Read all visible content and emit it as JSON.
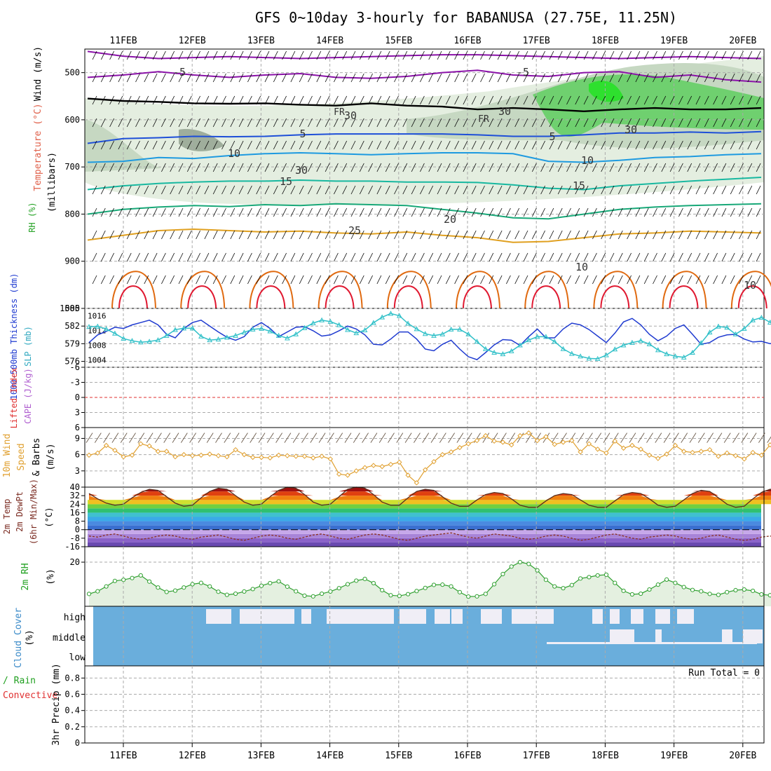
{
  "title": "GFS 0~10day 3-hourly for BABANUSA (27.75E, 11.25N)",
  "dates": [
    "11FEB",
    "12FEB",
    "13FEB",
    "14FEB",
    "15FEB",
    "16FEB",
    "17FEB",
    "18FEB",
    "19FEB",
    "20FEB"
  ],
  "colors": {
    "wind_barb": "#000000",
    "rh_light": "#e4eee0",
    "rh_mid": "#c6d8c2",
    "rh_dark": "#9fae9c",
    "rh_green": "#6fd06f",
    "rh_bright": "#2ee02e",
    "freezing": "#000000",
    "temp_minus5": "#8a12a8",
    "temp_5": "#1e4fd8",
    "temp_10": "#1e9ae0",
    "temp_15": "#18b8a0",
    "temp_20": "#18a878",
    "temp_25": "#e0a020",
    "temp_30": "#e06a10",
    "temp_35": "#e01830",
    "thickness": "#1e3ad0",
    "slp": "#30c0c8",
    "lifted_index_zero": "#e03030",
    "cape": "#b060d0",
    "wind10m": "#e0a030",
    "temp2m_fill": "#8a1010",
    "dewpoint": "#8a3020",
    "rh2m": "#30a030",
    "rh2m_fill": "#e4f0e0",
    "cloud_blue": "#6aaedc",
    "cloud_white": "#f0eef6",
    "precip_total": "#20a020",
    "precip_conv": "#e03030"
  },
  "chart_data": [
    {
      "type": "line",
      "panel": "upper-air",
      "ylabel_left": [
        "Wind (m/s)",
        "Temperature (°C)",
        "RH (%)"
      ],
      "ylabel": "(millibars)",
      "yticks": [
        500,
        600,
        700,
        800,
        900,
        1000
      ],
      "ylim": [
        450,
        1000
      ],
      "y_reversed": true,
      "grid": true,
      "contour_labels": [
        "-5",
        "-5",
        "FR",
        "FR",
        "5",
        "5",
        "10",
        "10",
        "15",
        "15",
        "20",
        "25",
        "10",
        "30",
        "30",
        "30",
        "30",
        "10"
      ],
      "series": [
        {
          "name": "-5",
          "level_mb": [
            455,
            465,
            470,
            468,
            466,
            468,
            470,
            468,
            466,
            464,
            462,
            462,
            464,
            466,
            468,
            470,
            468,
            466,
            468,
            470
          ]
        },
        {
          "name": "-5",
          "level_mb": [
            510,
            505,
            498,
            505,
            510,
            505,
            502,
            510,
            512,
            508,
            500,
            495,
            505,
            508,
            500,
            498,
            510,
            505,
            515,
            520
          ]
        },
        {
          "name": "FR",
          "level_mb": [
            555,
            560,
            562,
            565,
            566,
            565,
            568,
            570,
            565,
            570,
            572,
            578,
            575,
            578,
            582,
            578,
            575,
            578,
            578,
            575
          ]
        },
        {
          "name": "5",
          "level_mb": [
            650,
            640,
            638,
            635,
            636,
            635,
            632,
            630,
            630,
            630,
            630,
            632,
            635,
            635,
            632,
            628,
            628,
            626,
            628,
            625
          ]
        },
        {
          "name": "10",
          "level_mb": [
            690,
            688,
            680,
            682,
            676,
            672,
            670,
            672,
            674,
            672,
            670,
            670,
            672,
            688,
            690,
            686,
            680,
            678,
            674,
            672
          ]
        },
        {
          "name": "15",
          "level_mb": [
            748,
            740,
            735,
            732,
            730,
            730,
            728,
            730,
            730,
            732,
            732,
            733,
            738,
            745,
            748,
            740,
            735,
            730,
            726,
            722
          ]
        },
        {
          "name": "20",
          "level_mb": [
            800,
            790,
            785,
            782,
            784,
            780,
            782,
            778,
            780,
            782,
            790,
            798,
            808,
            810,
            800,
            790,
            785,
            782,
            780,
            778
          ]
        },
        {
          "name": "25",
          "level_mb": [
            855,
            845,
            835,
            832,
            835,
            838,
            836,
            840,
            842,
            838,
            845,
            850,
            860,
            858,
            850,
            842,
            840,
            836,
            838,
            840
          ]
        }
      ]
    },
    {
      "type": "line",
      "panel": "thickness-slp",
      "ylabel_left": "1000-500mb Thickness (dm)",
      "ylabel_right": "SLP (mb)",
      "yticks_left": [
        576,
        579,
        582,
        585
      ],
      "yticks_right": [
        1004,
        1008,
        1012,
        1016
      ],
      "ylim_left": [
        575,
        585
      ],
      "ylim_right": [
        1002,
        1018
      ],
      "series": [
        {
          "name": "1000-500mb Thickness",
          "axis": "left",
          "values": [
            579.2,
            580.5,
            581.1,
            581.8,
            581.6,
            582.2,
            582.6,
            583.0,
            582.2,
            580.6,
            580.0,
            581.6,
            582.6,
            583.0,
            582.0,
            581.0,
            580.1,
            579.6,
            580.2,
            581.8,
            582.6,
            581.6,
            580.2,
            581.0,
            581.8,
            581.9,
            581.2,
            580.3,
            580.5,
            581.2,
            582.0,
            581.5,
            580.5,
            578.9,
            578.8,
            579.8,
            581.0,
            581.0,
            579.8,
            578.1,
            577.8,
            578.9,
            579.6,
            578.1,
            576.8,
            576.3,
            577.5,
            578.8,
            579.7,
            579.6,
            578.7,
            580.2,
            581.5,
            580.0,
            580.0,
            581.5,
            582.5,
            582.2,
            581.4,
            580.3,
            579.2,
            580.8,
            582.7,
            583.3,
            582.2,
            580.6,
            579.5,
            580.3,
            581.6,
            582.2,
            580.6,
            578.9,
            579.2,
            580.1,
            580.5,
            580.6,
            579.8,
            579.3,
            579.4,
            579.0,
            579.4,
            580.1
          ]
        },
        {
          "name": "SLP",
          "axis": "right",
          "values": [
            1013.0,
            1013.1,
            1012.4,
            1011.2,
            1009.8,
            1009.2,
            1008.8,
            1009.0,
            1009.4,
            1010.6,
            1012.2,
            1012.6,
            1012.6,
            1010.4,
            1009.4,
            1009.6,
            1010.1,
            1010.6,
            1011.5,
            1012.3,
            1012.5,
            1011.8,
            1010.6,
            1009.9,
            1011.0,
            1012.7,
            1014.0,
            1014.8,
            1014.4,
            1013.5,
            1012.2,
            1011.3,
            1012.1,
            1014.1,
            1015.6,
            1016.6,
            1016.0,
            1013.9,
            1012.4,
            1011.1,
            1010.6,
            1011.0,
            1012.3,
            1012.3,
            1011.0,
            1009.0,
            1007.0,
            1006.0,
            1005.6,
            1006.4,
            1008.0,
            1009.4,
            1010.3,
            1010.3,
            1009.0,
            1007.0,
            1005.7,
            1005.0,
            1004.4,
            1004.3,
            1005.3,
            1006.9,
            1008.0,
            1008.7,
            1009.2,
            1008.3,
            1006.7,
            1005.6,
            1005.0,
            1004.7,
            1006.0,
            1008.6,
            1011.5,
            1013.1,
            1012.8,
            1011.0,
            1012.5,
            1014.8,
            1015.5,
            1014.2,
            1012.7,
            1012.1
          ]
        }
      ]
    },
    {
      "type": "line",
      "panel": "stability",
      "ylabel_left": "Lifted Index",
      "ylabel_right": "CAPE (J/kg)",
      "yticks": [
        -6,
        -3,
        0,
        3,
        6
      ],
      "ylim": [
        -6,
        6
      ],
      "y_reversed": true,
      "grid": true
    },
    {
      "type": "line",
      "panel": "wind10m",
      "ylabel": [
        "10m Wind",
        "Speed",
        "& Barbs",
        "(m/s)"
      ],
      "yticks": [
        3,
        6,
        9
      ],
      "ylim": [
        0,
        11
      ],
      "series": [
        {
          "name": "10m Wind Speed",
          "values": [
            5.9,
            6.3,
            7.7,
            6.8,
            5.6,
            5.9,
            8.0,
            7.6,
            6.6,
            6.6,
            5.6,
            6.0,
            5.8,
            5.9,
            6.1,
            5.8,
            5.6,
            6.9,
            6.0,
            5.5,
            5.5,
            5.4,
            5.9,
            5.8,
            5.7,
            5.7,
            5.4,
            5.7,
            5.2,
            2.4,
            2.2,
            3.0,
            3.6,
            4.0,
            3.8,
            4.2,
            4.6,
            2.2,
            0.8,
            3.2,
            4.7,
            6.0,
            6.5,
            7.3,
            8.0,
            8.6,
            9.5,
            8.5,
            8.3,
            7.8,
            9.5,
            10.0,
            8.6,
            9.3,
            7.9,
            8.3,
            8.6,
            6.5,
            8.0,
            7.0,
            6.3,
            8.5,
            7.2,
            7.7,
            7.0,
            5.9,
            5.3,
            6.1,
            7.7,
            6.6,
            6.4,
            6.6,
            6.9,
            5.7,
            6.3,
            5.8,
            5.2,
            6.4,
            5.9,
            7.8,
            6.1,
            6.6
          ]
        }
      ]
    },
    {
      "type": "area",
      "panel": "temp-dewpoint",
      "ylabel": [
        "2m Temp",
        "2m DewPt",
        "(6hr Min/Max)",
        "(°C)"
      ],
      "yticks": [
        -16,
        -8,
        0,
        8,
        16,
        24,
        32,
        40
      ],
      "ylim": [
        -16,
        40
      ],
      "series": [
        {
          "name": "2m Temp",
          "values": [
            34,
            29,
            25,
            23,
            24,
            30,
            35,
            38,
            37,
            31,
            25,
            22,
            23,
            30,
            36,
            39,
            38,
            32,
            26,
            23,
            24,
            31,
            37,
            40,
            39,
            33,
            26,
            23,
            24,
            31,
            38,
            40,
            39,
            33,
            26,
            23,
            23,
            30,
            36,
            38,
            37,
            31,
            25,
            22,
            22,
            28,
            33,
            35,
            34,
            29,
            23,
            21,
            21,
            27,
            32,
            34,
            33,
            28,
            23,
            21,
            21,
            27,
            33,
            35,
            34,
            29,
            23,
            21,
            22,
            28,
            34,
            37,
            36,
            30,
            24,
            21,
            22,
            29,
            35,
            38,
            37,
            31
          ]
        },
        {
          "name": "2m DewPt",
          "values": [
            -6,
            -7,
            -5,
            -4,
            -6,
            -8,
            -9,
            -8,
            -6,
            -5,
            -6,
            -8,
            -9,
            -7,
            -6,
            -5,
            -7,
            -9,
            -10,
            -8,
            -6,
            -5,
            -6,
            -8,
            -9,
            -7,
            -5,
            -4,
            -6,
            -8,
            -9,
            -7,
            -5,
            -4,
            -5,
            -7,
            -9,
            -10,
            -8,
            -6,
            -5,
            -4,
            -3,
            -5,
            -7,
            -8,
            -6,
            -4,
            -5,
            -6,
            -8,
            -9,
            -8,
            -6,
            -5,
            -6,
            -8,
            -10,
            -9,
            -7,
            -5,
            -4,
            -6,
            -8,
            -9,
            -7,
            -6,
            -5,
            -6,
            -8,
            -9,
            -8,
            -6,
            -5,
            -7,
            -9,
            -10,
            -9,
            -7,
            -6,
            -7,
            -8
          ]
        }
      ]
    },
    {
      "type": "area",
      "panel": "rh2m",
      "ylabel": [
        "2m RH",
        "(%)"
      ],
      "yticks": [
        20
      ],
      "ylim": [
        0,
        27
      ],
      "series": [
        {
          "name": "2m RH",
          "values": [
            5.6,
            6.8,
            9.0,
            11.5,
            12.0,
            12.8,
            14.0,
            11.2,
            8.5,
            6.5,
            7.1,
            8.5,
            10.0,
            10.6,
            9.0,
            6.6,
            5.2,
            5.7,
            6.7,
            7.8,
            9.3,
            10.5,
            11.3,
            8.9,
            6.8,
            4.8,
            4.5,
            5.7,
            6.7,
            8.2,
            10.0,
            11.6,
            12.4,
            10.5,
            7.3,
            5.0,
            4.7,
            5.5,
            6.9,
            8.3,
            9.7,
            9.8,
            9.0,
            6.4,
            4.4,
            4.5,
            5.6,
            10.0,
            14.6,
            18.0,
            20.0,
            19.2,
            16.3,
            12.0,
            9.0,
            8.2,
            9.6,
            12.6,
            13.2,
            14.0,
            14.3,
            10.6,
            7.0,
            5.4,
            5.7,
            7.6,
            9.8,
            12.1,
            10.6,
            8.7,
            7.4,
            6.8,
            5.6,
            5.2,
            6.4,
            7.3,
            7.6,
            7.0,
            5.4,
            5.0,
            5.9,
            6.0
          ]
        }
      ]
    },
    {
      "type": "heatmap",
      "panel": "cloud-cover",
      "ylabel": [
        "Cloud Cover",
        "(%)"
      ],
      "yticks": [
        "high",
        "middle",
        "low"
      ]
    },
    {
      "type": "bar",
      "panel": "precip",
      "ylabel": [
        "Total / Rain",
        "Convective",
        "3hr Precip (mm)"
      ],
      "yticks": [
        0,
        0.2,
        0.4,
        0.6,
        0.8
      ],
      "ylim": [
        0,
        0.95
      ],
      "annotation": "Run Total = 0",
      "values": []
    }
  ]
}
